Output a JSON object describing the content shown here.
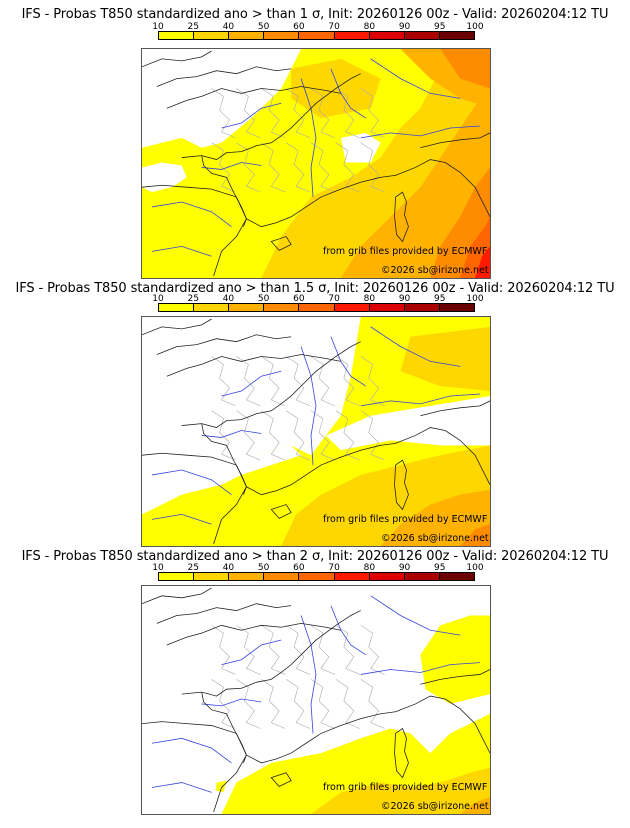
{
  "chart_data": [
    {
      "type": "heatmap",
      "title": "IFS - Probas T850  standardized ano > than 1 σ, Init: 20260126 00z - Valid: 20260204:12 TU",
      "threshold_sigma": 1,
      "colorbar": {
        "ticks": [
          "10",
          "25",
          "40",
          "50",
          "60",
          "70",
          "80",
          "90",
          "95",
          "100"
        ],
        "colors": [
          "#ffff00",
          "#ffd700",
          "#ffb300",
          "#ff8c00",
          "#ff6600",
          "#ff1a00",
          "#dd0000",
          "#aa0000",
          "#6b0000"
        ]
      },
      "region": "France / Western Europe",
      "max_probability_bin": "70-80",
      "credit_source": "from grib files provided by ECMWF",
      "credit_copyright": "©2026 sb@irizone.net"
    },
    {
      "type": "heatmap",
      "title": "IFS - Probas T850  standardized ano > than 1.5 σ, Init: 20260126 00z - Valid: 20260204:12 TU",
      "threshold_sigma": 1.5,
      "colorbar": {
        "ticks": [
          "10",
          "25",
          "40",
          "50",
          "60",
          "70",
          "80",
          "90",
          "95",
          "100"
        ],
        "colors": [
          "#ffff00",
          "#ffd700",
          "#ffb300",
          "#ff8c00",
          "#ff6600",
          "#ff1a00",
          "#dd0000",
          "#aa0000",
          "#6b0000"
        ]
      },
      "region": "France / Western Europe",
      "max_probability_bin": "50-60",
      "credit_source": "from grib files provided by ECMWF",
      "credit_copyright": "©2026 sb@irizone.net"
    },
    {
      "type": "heatmap",
      "title": "IFS - Probas T850  standardized ano > than 2 σ, Init: 20260126 00z - Valid: 20260204:12 TU",
      "threshold_sigma": 2,
      "colorbar": {
        "ticks": [
          "10",
          "25",
          "40",
          "50",
          "60",
          "70",
          "80",
          "90",
          "95",
          "100"
        ],
        "colors": [
          "#ffff00",
          "#ffd700",
          "#ffb300",
          "#ff8c00",
          "#ff6600",
          "#ff1a00",
          "#dd0000",
          "#aa0000",
          "#6b0000"
        ]
      },
      "region": "France / Western Europe",
      "max_probability_bin": "25-40",
      "credit_source": "from grib files provided by ECMWF",
      "credit_copyright": "©2026 sb@irizone.net"
    }
  ]
}
